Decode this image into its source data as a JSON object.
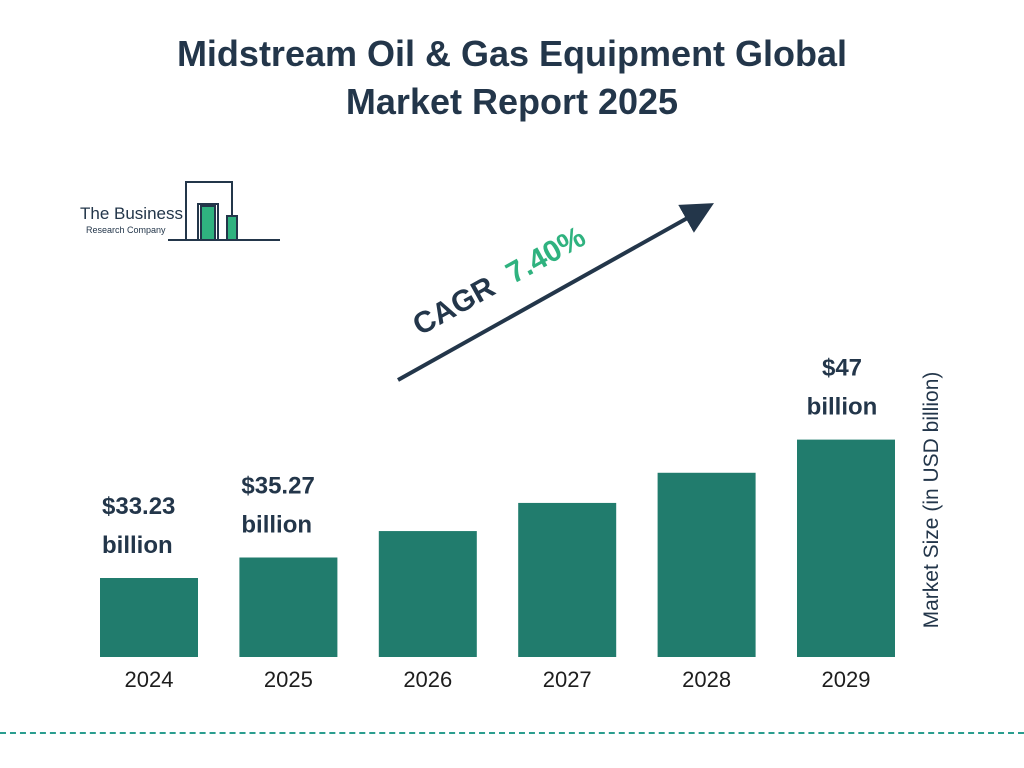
{
  "title_line1": "Midstream Oil & Gas Equipment Global",
  "title_line2": "Market Report 2025",
  "logo": {
    "line1": "The Business",
    "line2": "Research Company"
  },
  "cagr": {
    "label": "CAGR",
    "value": "7.40%"
  },
  "colors": {
    "bar": "#217c6d",
    "title": "#23364a",
    "accent": "#2fb27f",
    "dash": "#2a9d8f"
  },
  "chart_data": {
    "type": "bar",
    "title": "Midstream Oil & Gas Equipment Global Market Report 2025",
    "categories": [
      "2024",
      "2025",
      "2026",
      "2027",
      "2028",
      "2029"
    ],
    "values": [
      33.23,
      35.27,
      37.9,
      40.7,
      43.7,
      47
    ],
    "ylabel": "Market Size (in USD billion)",
    "data_labels": [
      "$33.23 billion",
      "$35.27 billion",
      "",
      "",
      "",
      "$47 billion"
    ],
    "data_label_lines": [
      [
        "$33.23",
        "billion"
      ],
      [
        "$35.27",
        "billion"
      ],
      null,
      null,
      null,
      [
        "$47",
        "billion"
      ]
    ],
    "grid": false
  }
}
